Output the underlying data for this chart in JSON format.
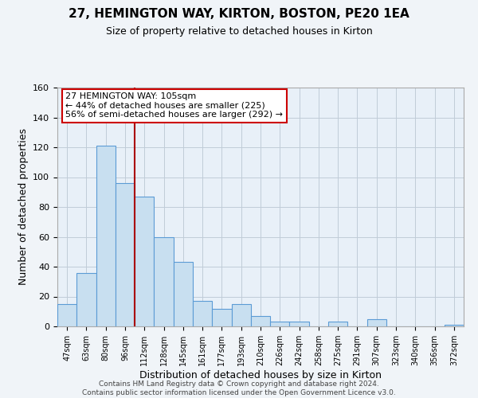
{
  "title": "27, HEMINGTON WAY, KIRTON, BOSTON, PE20 1EA",
  "subtitle": "Size of property relative to detached houses in Kirton",
  "xlabel": "Distribution of detached houses by size in Kirton",
  "ylabel": "Number of detached properties",
  "footer_line1": "Contains HM Land Registry data © Crown copyright and database right 2024.",
  "footer_line2": "Contains public sector information licensed under the Open Government Licence v3.0.",
  "bar_labels": [
    "47sqm",
    "63sqm",
    "80sqm",
    "96sqm",
    "112sqm",
    "128sqm",
    "145sqm",
    "161sqm",
    "177sqm",
    "193sqm",
    "210sqm",
    "226sqm",
    "242sqm",
    "258sqm",
    "275sqm",
    "291sqm",
    "307sqm",
    "323sqm",
    "340sqm",
    "356sqm",
    "372sqm"
  ],
  "bar_values": [
    15,
    36,
    121,
    96,
    87,
    60,
    43,
    17,
    12,
    15,
    7,
    3,
    3,
    0,
    3,
    0,
    5,
    0,
    0,
    0,
    1
  ],
  "bar_color": "#c8dff0",
  "bar_edge_color": "#5b9bd5",
  "annotation_text": "27 HEMINGTON WAY: 105sqm\n← 44% of detached houses are smaller (225)\n56% of semi-detached houses are larger (292) →",
  "annotation_box_color": "#ffffff",
  "annotation_box_edge": "#cc0000",
  "vline_color": "#aa0000",
  "vline_x": 3.5,
  "ylim": [
    0,
    160
  ],
  "yticks": [
    0,
    20,
    40,
    60,
    80,
    100,
    120,
    140,
    160
  ],
  "background_color": "#f0f4f8",
  "plot_bg_color": "#e8f0f8",
  "grid_color": "#c0ccd8",
  "title_fontsize": 11,
  "subtitle_fontsize": 9
}
